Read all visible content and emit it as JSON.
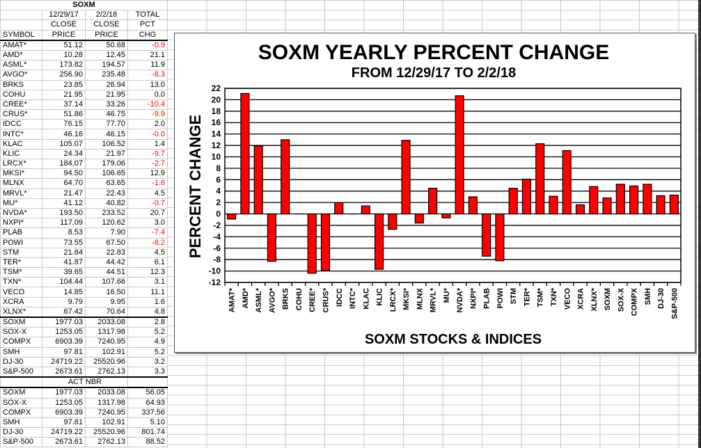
{
  "table": {
    "title": "SOXM",
    "header_rows": [
      [
        "",
        "12/29/17",
        "2/2/18",
        "TOTAL"
      ],
      [
        "",
        "CLOSE",
        "CLOSE",
        "PCT"
      ],
      [
        "SYMBOL",
        "PRICE",
        "PRICE",
        "CHG"
      ]
    ],
    "stocks": [
      [
        "AMAT*",
        "51.12",
        "50.68",
        "-0.9"
      ],
      [
        "AMD*",
        "10.28",
        "12.45",
        "21.1"
      ],
      [
        "ASML*",
        "173.82",
        "194.57",
        "11.9"
      ],
      [
        "AVGO*",
        "256.90",
        "235.48",
        "-8.3"
      ],
      [
        "BRKS",
        "23.85",
        "26.94",
        "13.0"
      ],
      [
        "COHU",
        "21.95",
        "21.95",
        "0.0"
      ],
      [
        "CREE*",
        "37.14",
        "33.26",
        "-10.4"
      ],
      [
        "CRUS*",
        "51.86",
        "46.75",
        "-9.9"
      ],
      [
        "IDCC",
        "76.15",
        "77.70",
        "2.0"
      ],
      [
        "INTC*",
        "46.16",
        "46.15",
        "-0.0"
      ],
      [
        "KLAC",
        "105.07",
        "106.52",
        "1.4"
      ],
      [
        "KLIC",
        "24.34",
        "21.97",
        "-9.7"
      ],
      [
        "LRCX*",
        "184.07",
        "179.06",
        "-2.7"
      ],
      [
        "MKSI*",
        "94.50",
        "106.65",
        "12.9"
      ],
      [
        "MLNX",
        "64.70",
        "63.65",
        "-1.6"
      ],
      [
        "MRVL*",
        "21.47",
        "22.43",
        "4.5"
      ],
      [
        "MU*",
        "41.12",
        "40.82",
        "-0.7"
      ],
      [
        "NVDA*",
        "193.50",
        "233.52",
        "20.7"
      ],
      [
        "NXPI*",
        "117.09",
        "120.62",
        "3.0"
      ],
      [
        "PLAB",
        "8.53",
        "7.90",
        "-7.4"
      ],
      [
        "POWI",
        "73.55",
        "67.50",
        "-8.2"
      ],
      [
        "STM",
        "21.84",
        "22.83",
        "4.5"
      ],
      [
        "TER*",
        "41.87",
        "44.42",
        "6.1"
      ],
      [
        "TSM*",
        "39.65",
        "44.51",
        "12.3"
      ],
      [
        "TXN*",
        "104.44",
        "107.66",
        "3.1"
      ],
      [
        "VECO",
        "14.85",
        "16.50",
        "11.1"
      ],
      [
        "XCRA",
        "9.79",
        "9.95",
        "1.6"
      ],
      [
        "XLNX*",
        "67.42",
        "70.64",
        "4.8"
      ]
    ],
    "indices": [
      [
        "SOXM",
        "1977.03",
        "2033.08",
        "2.8"
      ],
      [
        "SOX-X",
        "1253.05",
        "1317.98",
        "5.2"
      ],
      [
        "COMPX",
        "6903.39",
        "7240.95",
        "4.9"
      ],
      [
        "SMH",
        "97.81",
        "102.91",
        "5.2"
      ],
      [
        "DJ-30",
        "24719.22",
        "25520.96",
        "3.2"
      ],
      [
        "S&P-500",
        "2673.61",
        "2762.13",
        "3.3"
      ]
    ],
    "act_nbr_label": "ACT NBR",
    "act_nbr": [
      [
        "SOXM",
        "1977.03",
        "2033.08",
        "56.05"
      ],
      [
        "SOX-X",
        "1253.05",
        "1317.98",
        "64.93"
      ],
      [
        "COMPX",
        "6903.39",
        "7240.95",
        "337.56"
      ],
      [
        "SMH",
        "97.81",
        "102.91",
        "5.10"
      ],
      [
        "DJ-30",
        "24719.22",
        "25520.96",
        "801.74"
      ],
      [
        "S&P-500",
        "2673.61",
        "2762.13",
        "88.52"
      ]
    ]
  },
  "colors": {
    "bar": "#ff0000",
    "negative_text": "#ff0000"
  },
  "chart_data": {
    "type": "bar",
    "title": "SOXM YEARLY PERCENT CHANGE",
    "subtitle": "FROM 12/29/17 TO 2/2/18",
    "xlabel": "SOXM STOCKS & INDICES",
    "ylabel": "PERCENT CHANGE",
    "ylim": [
      -12,
      22
    ],
    "yticks": [
      "-12",
      "-10",
      "-8",
      "-6",
      "-4",
      "-2",
      "0",
      "2",
      "4",
      "6",
      "8",
      "10",
      "12",
      "14",
      "16",
      "18",
      "20",
      "22"
    ],
    "grid": true,
    "categories": [
      "AMAT*",
      "AMD*",
      "ASML*",
      "AVGO*",
      "BRKS",
      "COHU",
      "CREE*",
      "CRUS*",
      "IDCC",
      "INTC*",
      "KLAC",
      "KLIC",
      "LRCX*",
      "MKSI*",
      "MLNX",
      "MRVL*",
      "MU*",
      "NVDA*",
      "NXPI*",
      "PLAB",
      "POWI",
      "STM",
      "TER*",
      "TSM*",
      "TXN*",
      "VECO",
      "XCRA",
      "XLNX*",
      "SOXM",
      "SOX-X",
      "COMPX",
      "SMH",
      "DJ-30",
      "S&P-500"
    ],
    "values": [
      -0.9,
      21.1,
      11.9,
      -8.3,
      13.0,
      0.0,
      -10.4,
      -9.9,
      2.0,
      -0.0,
      1.4,
      -9.7,
      -2.7,
      12.9,
      -1.6,
      4.5,
      -0.7,
      20.7,
      3.0,
      -7.4,
      -8.2,
      4.5,
      6.1,
      12.3,
      3.1,
      11.1,
      1.6,
      4.8,
      2.8,
      5.2,
      4.9,
      5.2,
      3.2,
      3.3
    ]
  }
}
